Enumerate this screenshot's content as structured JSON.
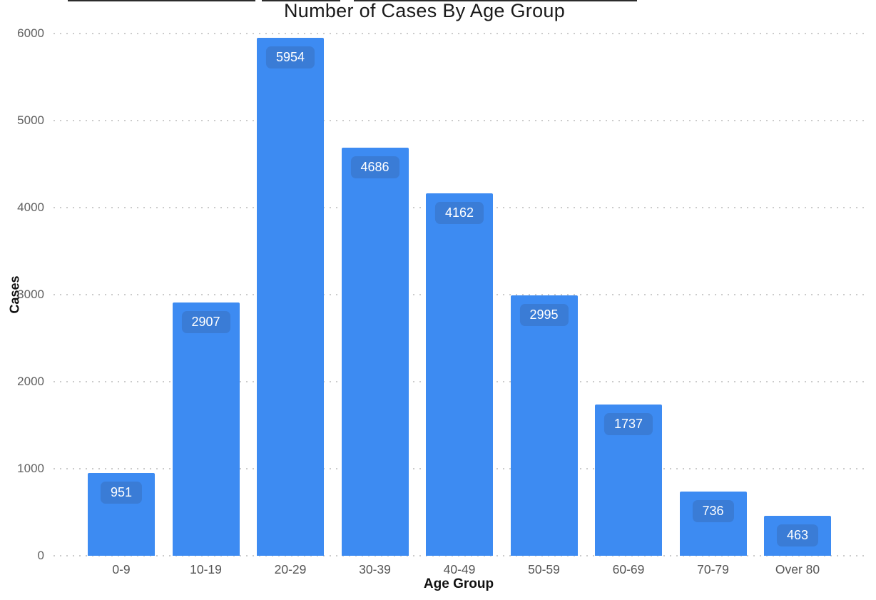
{
  "page": {
    "background": "#ffffff",
    "top_crop_artifact_color": "#2b2b2b"
  },
  "chart_data": {
    "type": "bar",
    "title": "Number of Cases By Age Group",
    "xlabel": "Age Group",
    "ylabel": "Cases",
    "categories": [
      "0-9",
      "10-19",
      "20-29",
      "30-39",
      "40-49",
      "50-59",
      "60-69",
      "70-79",
      "Over 80"
    ],
    "values": [
      951,
      2907,
      5954,
      4686,
      4162,
      2995,
      1737,
      736,
      463
    ],
    "bar_labels": [
      "951",
      "2907",
      "5954",
      "4686",
      "4162",
      "2995",
      "1737",
      "736",
      "463"
    ],
    "y_ticks": [
      0,
      1000,
      2000,
      3000,
      4000,
      5000,
      6000
    ],
    "y_tick_labels": [
      "0",
      "1000",
      "2000",
      "3000",
      "4000",
      "5000",
      "6000"
    ],
    "ylim": [
      0,
      6000
    ],
    "grid": "horizontal-dotted",
    "legend": "none",
    "colors": {
      "bar": "#3d8bf2",
      "bar_label_bg": "#3a7cd6",
      "bar_label_text": "#ffffff",
      "grid": "#cbcbcb",
      "tick_text": "#606060",
      "axis_title_text": "#111111",
      "title_text": "#1a1a1a"
    }
  }
}
